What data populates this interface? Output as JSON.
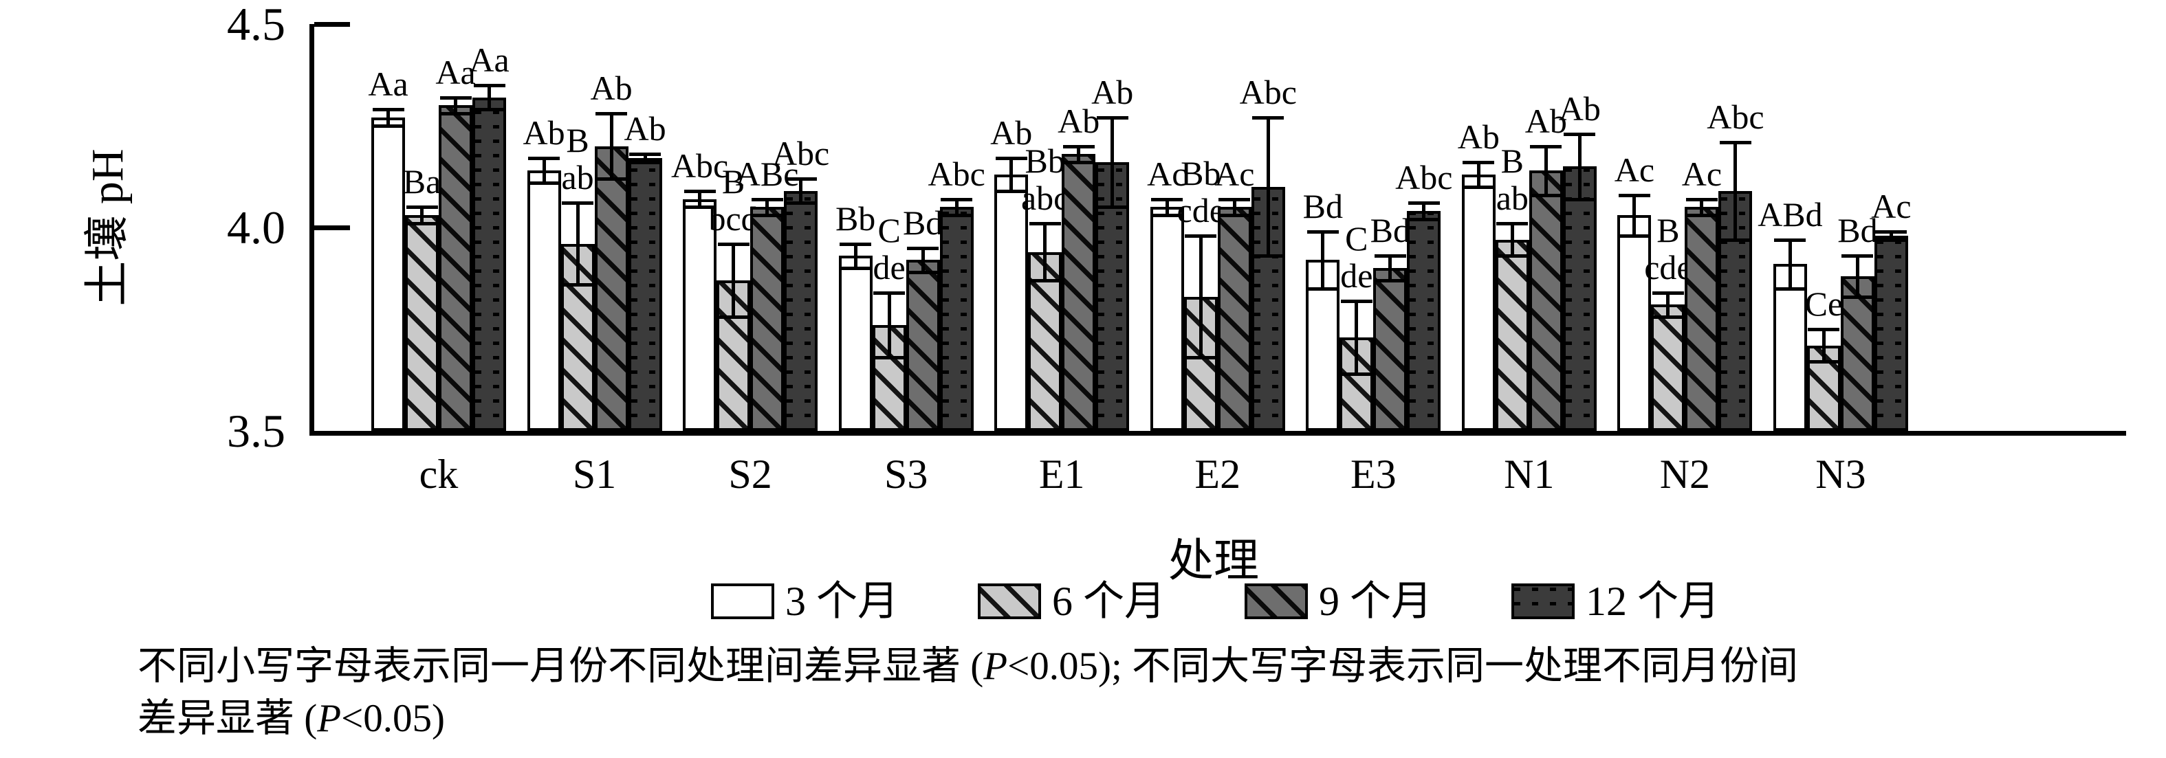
{
  "chart_data": {
    "type": "bar",
    "title": "",
    "xlabel": "处理",
    "ylabel": "土壤 pH",
    "ylim": [
      3.5,
      4.5
    ],
    "yticks": [
      4.5,
      4.0,
      3.5
    ],
    "grid": false,
    "legend_position": "bottom",
    "categories": [
      "ck",
      "S1",
      "S2",
      "S3",
      "E1",
      "E2",
      "E3",
      "N1",
      "N2",
      "N3"
    ],
    "series": [
      {
        "name": "3 个月",
        "values": [
          4.27,
          4.14,
          4.07,
          3.93,
          4.13,
          4.05,
          3.92,
          4.13,
          4.03,
          3.91
        ],
        "errors": [
          0.02,
          0.03,
          0.02,
          0.03,
          0.04,
          0.02,
          0.07,
          0.03,
          0.05,
          0.06
        ],
        "labels": [
          [
            "Aa"
          ],
          [
            "Ab"
          ],
          [
            "Abc"
          ],
          [
            "Bb"
          ],
          [
            "Ab"
          ],
          [
            "Ac"
          ],
          [
            "Bd"
          ],
          [
            "Ab"
          ],
          [
            "Ac"
          ],
          [
            "ABd"
          ]
        ]
      },
      {
        "name": "6 个月",
        "values": [
          4.03,
          3.96,
          3.87,
          3.76,
          3.94,
          3.83,
          3.73,
          3.97,
          3.81,
          3.71
        ],
        "errors": [
          0.02,
          0.1,
          0.09,
          0.08,
          0.07,
          0.15,
          0.09,
          0.04,
          0.03,
          0.04
        ],
        "labels": [
          [
            "Ba"
          ],
          [
            "B",
            "ab"
          ],
          [
            "B",
            "bcd"
          ],
          [
            "C",
            "de"
          ],
          [
            "Bb",
            "abc"
          ],
          [
            "Bb",
            "cde"
          ],
          [
            "C",
            "de"
          ],
          [
            "B",
            "ab"
          ],
          [
            "B",
            "cde"
          ],
          [
            "Ce"
          ]
        ]
      },
      {
        "name": "9 个月",
        "values": [
          4.3,
          4.2,
          4.05,
          3.92,
          4.18,
          4.05,
          3.9,
          4.14,
          4.05,
          3.88
        ],
        "errors": [
          0.02,
          0.08,
          0.02,
          0.03,
          0.02,
          0.02,
          0.03,
          0.06,
          0.02,
          0.05
        ],
        "labels": [
          [
            "Aa"
          ],
          [
            "Ab"
          ],
          [
            "ABc"
          ],
          [
            "Bd"
          ],
          [
            "Ab"
          ],
          [
            "Ac"
          ],
          [
            "Bd"
          ],
          [
            "Ab"
          ],
          [
            "Ac"
          ],
          [
            "Bd"
          ]
        ]
      },
      {
        "name": "12 个月",
        "values": [
          4.32,
          4.17,
          4.09,
          4.05,
          4.16,
          4.1,
          4.04,
          4.15,
          4.09,
          3.98
        ],
        "errors": [
          0.03,
          0.01,
          0.03,
          0.02,
          0.11,
          0.17,
          0.02,
          0.08,
          0.12,
          0.01
        ],
        "labels": [
          [
            "Aa"
          ],
          [
            "Ab"
          ],
          [
            "Abc"
          ],
          [
            "Abc"
          ],
          [
            "Ab"
          ],
          [
            "Abc"
          ],
          [
            "Abc"
          ],
          [
            "Ab"
          ],
          [
            "Abc"
          ],
          [
            "Ac"
          ]
        ]
      }
    ]
  },
  "caption": {
    "line1": "不同小写字母表示同一月份不同处理间差异显著 (P<0.05); 不同大写字母表示同一处理不同月份间",
    "line2": "差异显著 (P<0.05)"
  }
}
